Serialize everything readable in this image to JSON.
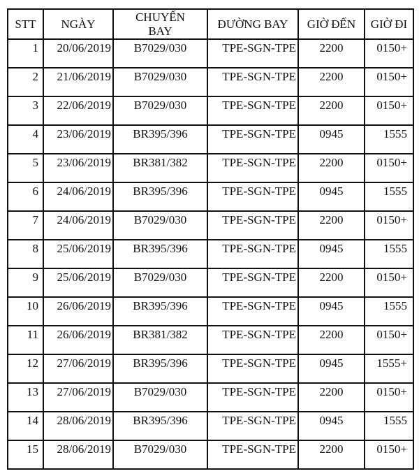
{
  "table": {
    "headers": [
      "STT",
      "NGÀY",
      "CHUYẾN BAY",
      "ĐƯỜNG BAY",
      "GIỜ ĐẾN",
      "GIỜ ĐI"
    ],
    "rows": [
      [
        "1",
        "20/06/2019",
        "B7029/030",
        "TPE-SGN-TPE",
        "2200",
        "0150+"
      ],
      [
        "2",
        "21/06/2019",
        "B7029/030",
        "TPE-SGN-TPE",
        "2200",
        "0150+"
      ],
      [
        "3",
        "22/06/2019",
        "B7029/030",
        "TPE-SGN-TPE",
        "2200",
        "0150+"
      ],
      [
        "4",
        "23/06/2019",
        "BR395/396",
        "TPE-SGN-TPE",
        "0945",
        "1555"
      ],
      [
        "5",
        "23/06/2019",
        "BR381/382",
        "TPE-SGN-TPE",
        "2200",
        "0150+"
      ],
      [
        "6",
        "24/06/2019",
        "BR395/396",
        "TPE-SGN-TPE",
        "0945",
        "1555"
      ],
      [
        "7",
        "24/06/2019",
        "B7029/030",
        "TPE-SGN-TPE",
        "2200",
        "0150+"
      ],
      [
        "8",
        "25/06/2019",
        "BR395/396",
        "TPE-SGN-TPE",
        "0945",
        "1555"
      ],
      [
        "9",
        "25/06/2019",
        "B7029/030",
        "TPE-SGN-TPE",
        "2200",
        "0150+"
      ],
      [
        "10",
        "26/06/2019",
        "BR395/396",
        "TPE-SGN-TPE",
        "0945",
        "1555"
      ],
      [
        "11",
        "26/06/2019",
        "BR381/382",
        "TPE-SGN-TPE",
        "2200",
        "0150+"
      ],
      [
        "12",
        "27/06/2019",
        "BR395/396",
        "TPE-SGN-TPE",
        "0945",
        "1555+"
      ],
      [
        "13",
        "27/06/2019",
        "B7029/030",
        "TPE-SGN-TPE",
        "2200",
        "0150+"
      ],
      [
        "14",
        "28/06/2019",
        "BR395/396",
        "TPE-SGN-TPE",
        "0945",
        "1555"
      ],
      [
        "15",
        "28/06/2019",
        "B7029/030",
        "TPE-SGN-TPE",
        "2200",
        "0150+"
      ]
    ]
  }
}
